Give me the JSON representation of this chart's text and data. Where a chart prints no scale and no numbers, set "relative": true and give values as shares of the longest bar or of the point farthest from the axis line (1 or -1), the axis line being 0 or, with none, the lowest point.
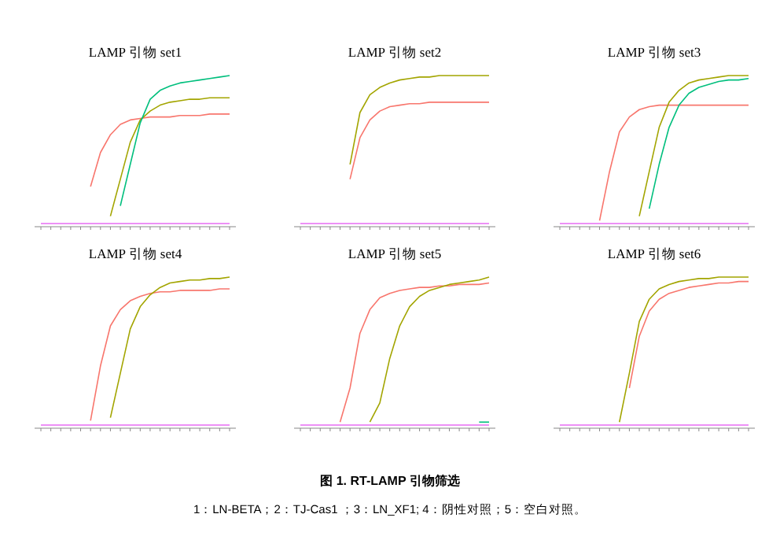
{
  "chart_data": [
    {
      "type": "line",
      "title": "LAMP 引物 set1",
      "relative": true,
      "categories": [
        null,
        null,
        null,
        null,
        null,
        null,
        null,
        null,
        null,
        null,
        null,
        null,
        null,
        null,
        null,
        null,
        null,
        null,
        null,
        null
      ],
      "series": [
        {
          "color": "#F8766D",
          "values": [
            null,
            null,
            null,
            null,
            null,
            0.25,
            0.48,
            0.6,
            0.67,
            0.7,
            0.71,
            0.72,
            0.72,
            0.72,
            0.73,
            0.73,
            0.73,
            0.74,
            0.74,
            0.74
          ]
        },
        {
          "color": "#A3A500",
          "values": [
            null,
            null,
            null,
            null,
            null,
            null,
            null,
            0.05,
            0.3,
            0.55,
            0.7,
            0.76,
            0.8,
            0.82,
            0.83,
            0.84,
            0.84,
            0.85,
            0.85,
            0.85
          ]
        },
        {
          "color": "#00BF7D",
          "values": [
            null,
            null,
            null,
            null,
            null,
            null,
            null,
            null,
            0.12,
            0.4,
            0.68,
            0.84,
            0.9,
            0.93,
            0.95,
            0.96,
            0.97,
            0.98,
            0.99,
            1
          ]
        },
        {
          "color": "#E76BF3",
          "values": [
            0,
            0,
            0,
            0,
            0,
            0,
            0,
            0,
            0,
            0,
            0,
            0,
            0,
            0,
            0,
            0,
            0,
            0,
            0,
            0
          ]
        }
      ]
    },
    {
      "type": "line",
      "title": "LAMP 引物 set2",
      "relative": true,
      "categories": [
        null,
        null,
        null,
        null,
        null,
        null,
        null,
        null,
        null,
        null,
        null,
        null,
        null,
        null,
        null,
        null,
        null,
        null,
        null,
        null
      ],
      "series": [
        {
          "color": "#F8766D",
          "values": [
            null,
            null,
            null,
            null,
            null,
            0.3,
            0.58,
            0.7,
            0.76,
            0.79,
            0.8,
            0.81,
            0.81,
            0.82,
            0.82,
            0.82,
            0.82,
            0.82,
            0.82,
            0.82
          ]
        },
        {
          "color": "#A3A500",
          "values": [
            null,
            null,
            null,
            null,
            null,
            0.4,
            0.75,
            0.87,
            0.92,
            0.95,
            0.97,
            0.98,
            0.99,
            0.99,
            1,
            1,
            1,
            1,
            1,
            1
          ]
        },
        {
          "color": "#E76BF3",
          "values": [
            0,
            0,
            0,
            0,
            0,
            0,
            0,
            0,
            0,
            0,
            0,
            0,
            0,
            0,
            0,
            0,
            0,
            0,
            0,
            0
          ]
        }
      ]
    },
    {
      "type": "line",
      "title": "LAMP 引物 set3",
      "relative": true,
      "categories": [
        null,
        null,
        null,
        null,
        null,
        null,
        null,
        null,
        null,
        null,
        null,
        null,
        null,
        null,
        null,
        null,
        null,
        null,
        null,
        null
      ],
      "series": [
        {
          "color": "#F8766D",
          "values": [
            null,
            null,
            null,
            null,
            0.02,
            0.35,
            0.62,
            0.72,
            0.77,
            0.79,
            0.8,
            0.8,
            0.8,
            0.8,
            0.8,
            0.8,
            0.8,
            0.8,
            0.8,
            0.8
          ]
        },
        {
          "color": "#A3A500",
          "values": [
            null,
            null,
            null,
            null,
            null,
            null,
            null,
            null,
            0.05,
            0.35,
            0.65,
            0.82,
            0.9,
            0.95,
            0.97,
            0.98,
            0.99,
            1,
            1,
            1
          ]
        },
        {
          "color": "#00BF7D",
          "values": [
            null,
            null,
            null,
            null,
            null,
            null,
            null,
            null,
            null,
            0.1,
            0.4,
            0.65,
            0.8,
            0.88,
            0.92,
            0.94,
            0.96,
            0.97,
            0.97,
            0.98
          ]
        },
        {
          "color": "#E76BF3",
          "values": [
            0,
            0,
            0,
            0,
            0,
            0,
            0,
            0,
            0,
            0,
            0,
            0,
            0,
            0,
            0,
            0,
            0,
            0,
            0,
            0
          ]
        }
      ]
    },
    {
      "type": "line",
      "title": "LAMP 引物 set4",
      "relative": true,
      "categories": [
        null,
        null,
        null,
        null,
        null,
        null,
        null,
        null,
        null,
        null,
        null,
        null,
        null,
        null,
        null,
        null,
        null,
        null,
        null,
        null
      ],
      "series": [
        {
          "color": "#F8766D",
          "values": [
            null,
            null,
            null,
            null,
            null,
            0.03,
            0.4,
            0.67,
            0.78,
            0.84,
            0.87,
            0.89,
            0.9,
            0.9,
            0.91,
            0.91,
            0.91,
            0.91,
            0.92,
            0.92
          ]
        },
        {
          "color": "#A3A500",
          "values": [
            null,
            null,
            null,
            null,
            null,
            null,
            null,
            0.05,
            0.35,
            0.65,
            0.8,
            0.88,
            0.93,
            0.96,
            0.97,
            0.98,
            0.98,
            0.99,
            0.99,
            1
          ]
        },
        {
          "color": "#E76BF3",
          "values": [
            0,
            0,
            0,
            0,
            0,
            0,
            0,
            0,
            0,
            0,
            0,
            0,
            0,
            0,
            0,
            0,
            0,
            0,
            0,
            0
          ]
        }
      ]
    },
    {
      "type": "line",
      "title": "LAMP 引物 set5",
      "relative": true,
      "categories": [
        null,
        null,
        null,
        null,
        null,
        null,
        null,
        null,
        null,
        null,
        null,
        null,
        null,
        null,
        null,
        null,
        null,
        null,
        null,
        null
      ],
      "series": [
        {
          "color": "#F8766D",
          "values": [
            null,
            null,
            null,
            null,
            0.02,
            0.25,
            0.62,
            0.78,
            0.86,
            0.89,
            0.91,
            0.92,
            0.93,
            0.93,
            0.94,
            0.94,
            0.95,
            0.95,
            0.95,
            0.96
          ]
        },
        {
          "color": "#A3A500",
          "values": [
            null,
            null,
            null,
            null,
            null,
            null,
            null,
            0.02,
            0.15,
            0.45,
            0.67,
            0.8,
            0.87,
            0.91,
            0.93,
            0.95,
            0.96,
            0.97,
            0.98,
            1
          ]
        },
        {
          "color": "#00BF7D",
          "values": [
            null,
            null,
            null,
            null,
            null,
            null,
            null,
            null,
            null,
            null,
            null,
            null,
            null,
            null,
            null,
            null,
            null,
            null,
            0.02,
            0.02
          ]
        },
        {
          "color": "#E76BF3",
          "values": [
            0,
            0,
            0,
            0,
            0,
            0,
            0,
            0,
            0,
            0,
            0,
            0,
            0,
            0,
            0,
            0,
            0,
            0,
            0,
            0
          ]
        }
      ]
    },
    {
      "type": "line",
      "title": "LAMP 引物 set6",
      "relative": true,
      "categories": [
        null,
        null,
        null,
        null,
        null,
        null,
        null,
        null,
        null,
        null,
        null,
        null,
        null,
        null,
        null,
        null,
        null,
        null,
        null,
        null
      ],
      "series": [
        {
          "color": "#F8766D",
          "values": [
            null,
            null,
            null,
            null,
            null,
            null,
            null,
            0.25,
            0.6,
            0.77,
            0.85,
            0.89,
            0.91,
            0.93,
            0.94,
            0.95,
            0.96,
            0.96,
            0.97,
            0.97
          ]
        },
        {
          "color": "#A3A500",
          "values": [
            null,
            null,
            null,
            null,
            null,
            null,
            0.02,
            0.35,
            0.7,
            0.85,
            0.92,
            0.95,
            0.97,
            0.98,
            0.99,
            0.99,
            1,
            1,
            1,
            1
          ]
        },
        {
          "color": "#E76BF3",
          "values": [
            0,
            0,
            0,
            0,
            0,
            0,
            0,
            0,
            0,
            0,
            0,
            0,
            0,
            0,
            0,
            0,
            0,
            0,
            0,
            0
          ]
        }
      ]
    },
    {
      "type": "other",
      "title": "图 1. RT-LAMP 引物筛选",
      "annotations": [
        "1：LN-BETA；2：TJ-Cas1 ；3：LN_XF1; 4：阴性对照；5：空白对照。"
      ]
    }
  ]
}
